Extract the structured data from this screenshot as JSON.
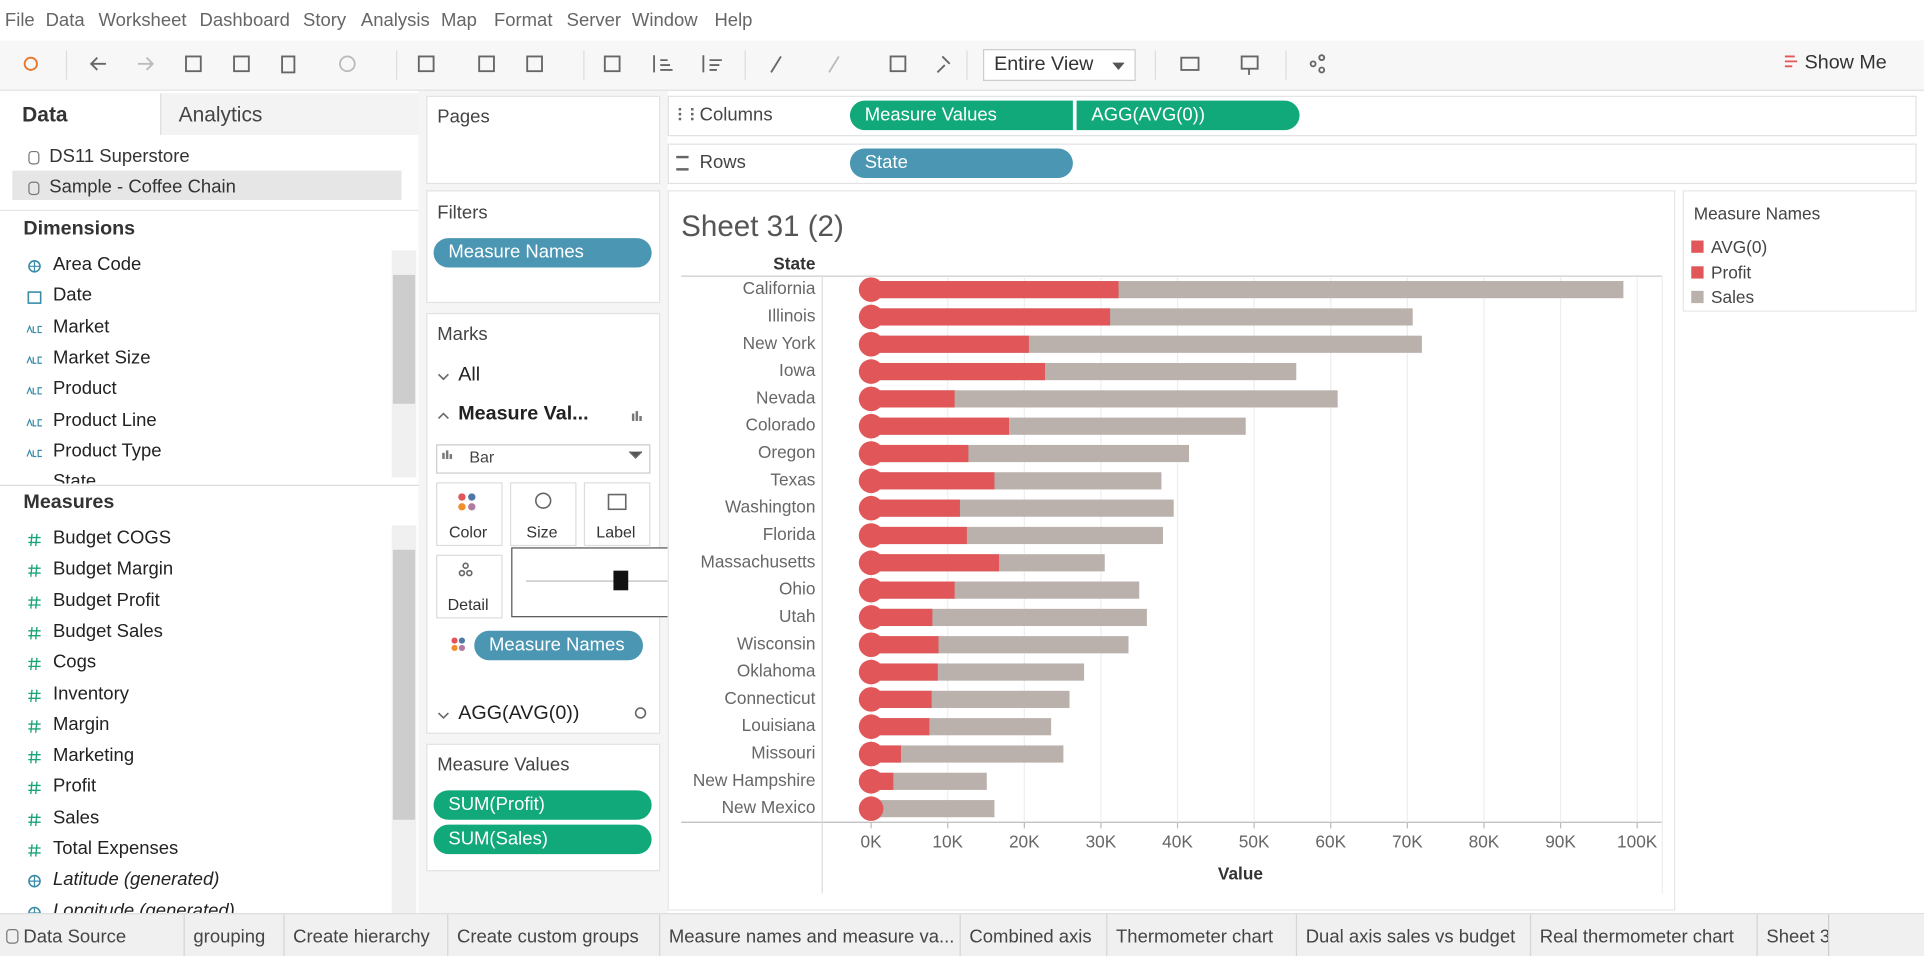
{
  "menu": [
    "File",
    "Data",
    "Worksheet",
    "Dashboard",
    "Story",
    "Analysis",
    "Map",
    "Format",
    "Server",
    "Window",
    "Help"
  ],
  "toolbar": {
    "view": "Entire View",
    "show_me": "Show Me"
  },
  "data_pane": {
    "tabs": [
      "Data",
      "Analytics"
    ],
    "sources": [
      "DS11 Superstore",
      "Sample - Coffee Chain"
    ],
    "dimensions_title": "Dimensions",
    "dimensions": [
      "Area Code",
      "Date",
      "Market",
      "Market Size",
      "Product",
      "Product Line",
      "Product Type",
      "State"
    ],
    "measures_title": "Measures",
    "measures": [
      "Budget COGS",
      "Budget Margin",
      "Budget Profit",
      "Budget Sales",
      "Cogs",
      "Inventory",
      "Margin",
      "Marketing",
      "Profit",
      "Sales",
      "Total Expenses",
      "Latitude (generated)",
      "Longitude (generated)"
    ]
  },
  "shelves": {
    "pages": "Pages",
    "filters": {
      "title": "Filters",
      "pills": [
        "Measure Names"
      ]
    },
    "marks": {
      "title": "Marks",
      "all": "All",
      "measure_values": "Measure Val...",
      "mark_type": "Bar",
      "buttons": [
        "Color",
        "Size",
        "Label",
        "Detail"
      ],
      "color_pill": "Measure Names",
      "agg": "AGG(AVG(0))"
    },
    "measure_values": {
      "title": "Measure Values",
      "pills": [
        "SUM(Profit)",
        "SUM(Sales)"
      ]
    },
    "columns": {
      "label": "Columns",
      "pills": [
        "Measure Values",
        "AGG(AVG(0))"
      ]
    },
    "rows": {
      "label": "Rows",
      "pills": [
        "State"
      ]
    }
  },
  "chart_data": {
    "type": "bar",
    "title": "Sheet 31 (2)",
    "row_header": "State",
    "categories": [
      "California",
      "Illinois",
      "New York",
      "Iowa",
      "Nevada",
      "Colorado",
      "Oregon",
      "Texas",
      "Washington",
      "Florida",
      "Massachusetts",
      "Ohio",
      "Utah",
      "Wisconsin",
      "Oklahoma",
      "Connecticut",
      "Louisiana",
      "Missouri",
      "New Hampshire",
      "New Mexico"
    ],
    "series": [
      {
        "name": "AVG(0)",
        "color": "#e15759",
        "mark": "circle",
        "values": [
          0,
          0,
          0,
          0,
          0,
          0,
          0,
          0,
          0,
          0,
          0,
          0,
          0,
          0,
          0,
          0,
          0,
          0,
          0,
          0
        ]
      },
      {
        "name": "Profit",
        "color": "#e15759",
        "values": [
          32300,
          31200,
          20600,
          22700,
          10900,
          18000,
          12700,
          16100,
          11600,
          12500,
          16700,
          10900,
          8000,
          8800,
          8700,
          7900,
          7600,
          3900,
          2900,
          800
        ]
      },
      {
        "name": "Sales",
        "color": "#bab0ac",
        "values": [
          98200,
          70700,
          71900,
          55500,
          60900,
          48900,
          41500,
          37900,
          39500,
          38100,
          30500,
          35000,
          36000,
          33600,
          27800,
          25900,
          23500,
          25100,
          15100,
          16100
        ]
      }
    ],
    "xlim": [
      -6300,
      103200
    ],
    "xticks": [
      {
        "value": 0,
        "label": "0K"
      },
      {
        "value": 10000,
        "label": "10K"
      },
      {
        "value": 20000,
        "label": "20K"
      },
      {
        "value": 30000,
        "label": "30K"
      },
      {
        "value": 40000,
        "label": "40K"
      },
      {
        "value": 50000,
        "label": "50K"
      },
      {
        "value": 60000,
        "label": "60K"
      },
      {
        "value": 70000,
        "label": "70K"
      },
      {
        "value": 80000,
        "label": "80K"
      },
      {
        "value": 90000,
        "label": "90K"
      },
      {
        "value": 100000,
        "label": "100K"
      }
    ],
    "xlabel": "Value",
    "grid": true,
    "legend_title": "Measure Names",
    "legend": "right"
  },
  "tabs": [
    "Data Source",
    "grouping",
    "Create hierarchy",
    "Create custom groups",
    "Measure names and measure va...",
    "Combined axis",
    "Thermometer chart",
    "Dual axis sales vs budget",
    "Real thermometer chart",
    "Sheet 3"
  ]
}
